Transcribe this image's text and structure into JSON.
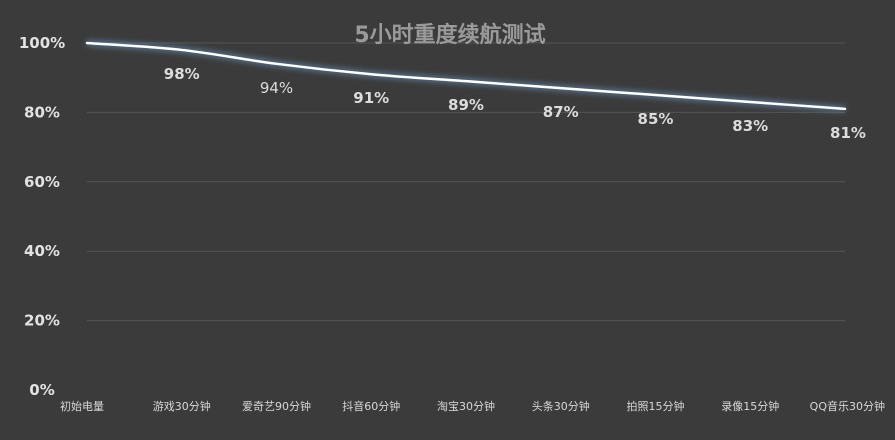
{
  "chart_data": {
    "type": "line",
    "title": "5小时重度续航测试",
    "categories": [
      "初始电量",
      "游戏30分钟",
      "爱奇艺90分钟",
      "抖音60分钟",
      "淘宝30分钟",
      "头条30分钟",
      "拍照15分钟",
      "录像15分钟",
      "QQ音乐30分钟"
    ],
    "series": [
      {
        "values": [
          100,
          98,
          94,
          91,
          89,
          87,
          85,
          83,
          81
        ]
      }
    ],
    "data_labels": [
      "98%",
      "94%",
      "91%",
      "89%",
      "87%",
      "85%",
      "83%",
      "81%"
    ],
    "y_ticks": [
      "0%",
      "20%",
      "40%",
      "60%",
      "80%",
      "100%"
    ],
    "ylim": [
      0,
      100
    ],
    "grid": true,
    "legend": "none",
    "colors": {
      "background": "#3b3b3b",
      "line": "#ffffff",
      "glow": "#6fa3d8",
      "grid": "#555555"
    }
  }
}
